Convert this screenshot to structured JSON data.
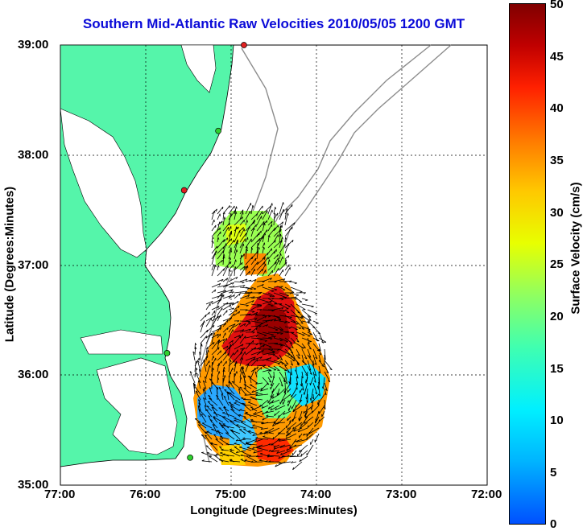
{
  "map": {
    "title": "Southern Mid-Atlantic Raw Velocities 2010/05/05 1200 GMT",
    "xlabel": "Longitude (Degrees:Minutes)",
    "ylabel": "Latitude (Degrees:Minutes)",
    "x_ticks": [
      "77:00",
      "76:00",
      "75:00",
      "74:00",
      "73:00",
      "72:00"
    ],
    "y_ticks": [
      "39:00",
      "38:00",
      "37:00",
      "36:00",
      "35:00"
    ],
    "x_range": [
      -77,
      -72
    ],
    "y_range": [
      35,
      39
    ],
    "colors": {
      "land": "#55f5aa",
      "title": "#0b0bd8",
      "station_green": "#2ed02e",
      "station_red": "#e02020"
    }
  },
  "colorbar": {
    "label": "Surface Velocity (cm/s)",
    "ticks": [
      "0",
      "5",
      "10",
      "15",
      "20",
      "25",
      "30",
      "35",
      "40",
      "45",
      "50"
    ],
    "range": [
      0,
      50
    ],
    "colormap": "jet"
  },
  "stations": [
    {
      "lon": -74.85,
      "lat": 39.0,
      "status": "red"
    },
    {
      "lon": -75.15,
      "lat": 38.22,
      "status": "green"
    },
    {
      "lon": -75.55,
      "lat": 37.68,
      "status": "red"
    },
    {
      "lon": -75.75,
      "lat": 36.2,
      "status": "green"
    },
    {
      "lon": -75.48,
      "lat": 35.25,
      "status": "green"
    }
  ]
}
